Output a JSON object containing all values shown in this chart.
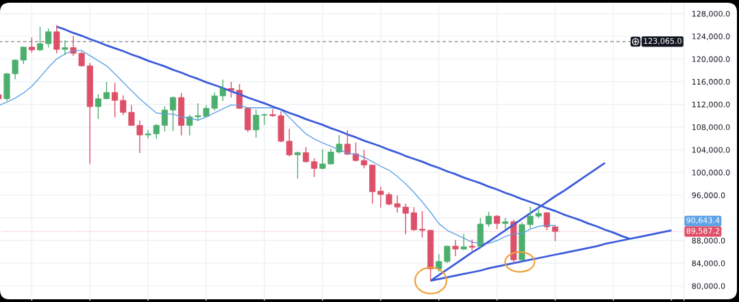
{
  "chart_data": {
    "type": "candlestick",
    "categories": [
      null,
      null,
      null,
      null,
      null,
      null,
      null,
      null,
      null,
      null,
      null,
      null,
      null,
      null,
      null,
      null,
      null,
      null,
      null,
      null,
      null,
      null,
      null,
      null,
      null,
      null,
      null,
      null,
      null,
      null,
      null,
      null,
      null,
      null,
      null,
      null,
      null,
      null,
      null,
      null,
      null,
      null,
      null,
      null,
      null,
      null,
      null,
      null,
      null,
      null,
      null,
      null,
      null,
      null,
      null,
      null,
      null,
      null,
      null,
      null,
      null,
      null,
      null,
      null,
      null,
      null,
      null,
      null,
      null,
      null,
      null,
      null,
      null,
      null,
      null,
      null,
      null,
      null,
      null,
      null,
      null,
      null,
      null
    ],
    "ohlc": [
      [
        113700,
        113800,
        112900,
        113000
      ],
      [
        113000,
        117500,
        112700,
        117400
      ],
      [
        117400,
        119800,
        116500,
        119800
      ],
      [
        119800,
        122100,
        119200,
        122100
      ],
      [
        122100,
        123700,
        121200,
        121600
      ],
      [
        121600,
        125600,
        121500,
        122700
      ],
      [
        122700,
        125300,
        122100,
        124800
      ],
      [
        124800,
        125900,
        121100,
        121700
      ],
      [
        121700,
        123200,
        120800,
        122000
      ],
      [
        122000,
        124000,
        120600,
        121000
      ],
      [
        121000,
        121200,
        118700,
        118800
      ],
      [
        118800,
        119200,
        101600,
        111600
      ],
      [
        111600,
        113700,
        109500,
        113000
      ],
      [
        113000,
        115900,
        113000,
        114100
      ],
      [
        114100,
        115700,
        109800,
        112700
      ],
      [
        112700,
        113500,
        110200,
        110600
      ],
      [
        110600,
        111800,
        108300,
        108300
      ],
      [
        108300,
        109100,
        103500,
        106600
      ],
      [
        106600,
        107400,
        106100,
        106800
      ],
      [
        106800,
        108500,
        106000,
        108300
      ],
      [
        108300,
        111600,
        107300,
        111000
      ],
      [
        111000,
        113300,
        107400,
        113200
      ],
      [
        113200,
        113900,
        106600,
        108300
      ],
      [
        108300,
        110100,
        106600,
        109800
      ],
      [
        109800,
        112100,
        109200,
        110000
      ],
      [
        109900,
        111800,
        109800,
        111300
      ],
      [
        111300,
        114000,
        111000,
        113500
      ],
      [
        113500,
        116300,
        112700,
        114800
      ],
      [
        114800,
        115900,
        113300,
        114500
      ],
      [
        114500,
        115500,
        111300,
        111300
      ],
      [
        111300,
        111400,
        107200,
        107500
      ],
      [
        107500,
        111000,
        106200,
        110100
      ],
      [
        110100,
        110300,
        108500,
        110200
      ],
      [
        110200,
        111100,
        109900,
        110000
      ],
      [
        110000,
        110700,
        105400,
        105500
      ],
      [
        105500,
        107600,
        102900,
        103100
      ],
      [
        103100,
        103600,
        99000,
        103500
      ],
      [
        103500,
        104400,
        101800,
        101900
      ],
      [
        101900,
        102400,
        99300,
        100700
      ],
      [
        100700,
        104000,
        100600,
        101500
      ],
      [
        101500,
        104100,
        101500,
        103600
      ],
      [
        103600,
        106500,
        103400,
        105000
      ],
      [
        105000,
        107400,
        103200,
        103200
      ],
      [
        103300,
        105200,
        102000,
        102100
      ],
      [
        102100,
        103900,
        100800,
        101300
      ],
      [
        101300,
        101300,
        94600,
        96600
      ],
      [
        96700,
        97400,
        93900,
        96100
      ],
      [
        96100,
        96400,
        94300,
        94400
      ],
      [
        94500,
        95900,
        93000,
        93900
      ],
      [
        93900,
        94400,
        89200,
        92800
      ],
      [
        92900,
        93800,
        89800,
        89900
      ],
      [
        90000,
        93100,
        88600,
        89800
      ],
      [
        89800,
        89800,
        80900,
        83000
      ],
      [
        83000,
        85500,
        82600,
        84300
      ],
      [
        84300,
        87000,
        84100,
        87000
      ],
      [
        87000,
        88000,
        85300,
        86500
      ],
      [
        86500,
        89100,
        86400,
        86900
      ],
      [
        87000,
        88100,
        86300,
        86800
      ],
      [
        87000,
        91900,
        86800,
        90900
      ],
      [
        90900,
        93000,
        90500,
        92300
      ],
      [
        92300,
        92400,
        90100,
        91000
      ],
      [
        91000,
        91900,
        90100,
        91300
      ],
      [
        91300,
        91600,
        84000,
        84600
      ],
      [
        84600,
        91100,
        84400,
        90800
      ],
      [
        90800,
        93900,
        90200,
        92300
      ],
      [
        92300,
        93400,
        92000,
        92800
      ],
      [
        92900,
        92900,
        89900,
        90400
      ],
      [
        90400,
        90600,
        88000,
        89587.2
      ],
      null,
      null,
      null,
      null,
      null,
      null,
      null,
      null,
      null,
      null,
      null,
      null,
      null,
      null,
      null
    ],
    "colors": [
      "#dd5069",
      "#4caf6e",
      "#4caf6e",
      "#4caf6e",
      "#dd5069",
      "#4caf6e",
      "#4caf6e",
      "#dd5069",
      "#4caf6e",
      "#dd5069",
      "#dd5069",
      "#dd5069",
      "#4caf6e",
      "#4caf6e",
      "#dd5069",
      "#dd5069",
      "#dd5069",
      "#dd5069",
      "#4caf6e",
      "#4caf6e",
      "#4caf6e",
      "#4caf6e",
      "#dd5069",
      "#4caf6e",
      "#4caf6e",
      "#4caf6e",
      "#4caf6e",
      "#4caf6e",
      "#dd5069",
      "#dd5069",
      "#dd5069",
      "#4caf6e",
      "#4caf6e",
      "#dd5069",
      "#dd5069",
      "#dd5069",
      "#4caf6e",
      "#dd5069",
      "#dd5069",
      "#4caf6e",
      "#4caf6e",
      "#4caf6e",
      "#dd5069",
      "#dd5069",
      "#dd5069",
      "#dd5069",
      "#dd5069",
      "#dd5069",
      "#dd5069",
      "#dd5069",
      "#dd5069",
      "#dd5069",
      "#dd5069",
      "#4caf6e",
      "#4caf6e",
      "#dd5069",
      "#4caf6e",
      "#dd5069",
      "#4caf6e",
      "#4caf6e",
      "#dd5069",
      "#4caf6e",
      "#dd5069",
      "#4caf6e",
      "#4caf6e",
      "#4caf6e",
      "#dd5069",
      "#dd5069",
      null,
      null,
      null,
      null,
      null,
      null,
      null,
      null,
      null,
      null,
      null,
      null,
      null,
      null,
      null
    ],
    "series": [
      {
        "type": "line",
        "color": "#5ea2e6",
        "values": [
          111800,
          112400,
          113100,
          114000,
          115200,
          116800,
          118500,
          120000,
          120900,
          121500,
          121500,
          120600,
          119700,
          118800,
          117400,
          115900,
          114400,
          113000,
          111700,
          110500,
          110300,
          110300,
          109800,
          109600,
          109200,
          109800,
          110500,
          111200,
          111900,
          111800,
          111400,
          111400,
          111400,
          111400,
          111100,
          109700,
          108200,
          106800,
          105900,
          105200,
          104600,
          104000,
          103400,
          103200,
          102700,
          101900,
          101100,
          100400,
          99300,
          98000,
          96500,
          94800,
          93000,
          91000,
          89800,
          89100,
          88400,
          87700,
          87500,
          87500,
          88000,
          88700,
          89200,
          89200,
          90000,
          90500,
          90700,
          90643.4,
          null,
          null,
          null,
          null,
          null,
          null,
          null,
          null,
          null,
          null,
          null,
          null,
          null,
          null,
          null
        ]
      },
      {
        "type": "line",
        "color": "#3b5bdb",
        "values": [
          null,
          null,
          null,
          null,
          null,
          null,
          null,
          125700,
          125200,
          124600,
          124100,
          123500,
          123000,
          122400,
          121900,
          121400,
          120800,
          120300,
          119700,
          119200,
          118700,
          118100,
          117600,
          117000,
          116500,
          115900,
          115400,
          114900,
          114300,
          113800,
          113200,
          112700,
          112200,
          111600,
          111100,
          110500,
          110000,
          109400,
          108900,
          108400,
          107800,
          107300,
          106700,
          106200,
          105600,
          105100,
          104600,
          104000,
          103500,
          102900,
          102400,
          101900,
          101300,
          100800,
          100200,
          99700,
          99100,
          98600,
          98100,
          97500,
          97000,
          96400,
          95900,
          95300,
          94800,
          94300,
          93700,
          93200,
          92600,
          92100,
          91600,
          91000,
          90500,
          89900,
          89400,
          88800,
          88300,
          null,
          null,
          null,
          null,
          null,
          null
        ]
      },
      {
        "type": "line",
        "color": "#3b5bdb",
        "values": [
          null,
          null,
          null,
          null,
          null,
          null,
          null,
          null,
          null,
          null,
          null,
          null,
          null,
          null,
          null,
          null,
          null,
          null,
          null,
          null,
          null,
          null,
          null,
          null,
          null,
          null,
          null,
          null,
          null,
          null,
          null,
          null,
          null,
          null,
          null,
          null,
          null,
          null,
          null,
          null,
          null,
          null,
          null,
          null,
          null,
          null,
          null,
          null,
          null,
          null,
          null,
          null,
          80900,
          81900,
          82900,
          83900,
          84900,
          85900,
          86800,
          87800,
          88800,
          89800,
          90800,
          91800,
          92800,
          93800,
          94800,
          95800,
          96700,
          97700,
          98700,
          99700,
          100700,
          101700,
          null,
          null,
          null,
          null,
          null,
          null,
          null,
          null,
          null
        ]
      },
      {
        "type": "line",
        "color": "#3b5bdb",
        "values": [
          null,
          null,
          null,
          null,
          null,
          null,
          null,
          null,
          null,
          null,
          null,
          null,
          null,
          null,
          null,
          null,
          null,
          null,
          null,
          null,
          null,
          null,
          null,
          null,
          null,
          null,
          null,
          null,
          null,
          null,
          null,
          null,
          null,
          null,
          null,
          null,
          null,
          null,
          null,
          null,
          null,
          null,
          null,
          null,
          null,
          null,
          null,
          null,
          null,
          null,
          null,
          null,
          80900,
          81200,
          81500,
          81800,
          82100,
          82400,
          82700,
          83100,
          83400,
          83700,
          84000,
          84300,
          84600,
          84900,
          85200,
          85500,
          85800,
          86100,
          86400,
          86700,
          87000,
          87400,
          87700,
          88000,
          88300,
          88600,
          88900,
          89200,
          89500,
          89800,
          null
        ]
      }
    ],
    "ylim": [
      77400,
      129800
    ],
    "yticks": [
      {
        "value": 80000,
        "label": "80,000.0"
      },
      {
        "value": 84000,
        "label": "84,000.0"
      },
      {
        "value": 88000,
        "label": "88,000.0"
      },
      {
        "value": 92000,
        "label": null
      },
      {
        "value": 96000,
        "label": "96,000.0"
      },
      {
        "value": 100000,
        "label": "100,000.0"
      },
      {
        "value": 104000,
        "label": "104,000.0"
      },
      {
        "value": 108000,
        "label": "108,000.0"
      },
      {
        "value": 112000,
        "label": "112,000.0"
      },
      {
        "value": 116000,
        "label": "116,000.0"
      },
      {
        "value": 120000,
        "label": "120,000.0"
      },
      {
        "value": 124000,
        "label": "124,000.0"
      },
      {
        "value": 128000,
        "label": "128,000.0"
      }
    ],
    "grid": true,
    "ref_lines": [
      {
        "axis": "y",
        "value": 123065.0,
        "label": "123,065.0",
        "color": "#131722",
        "line_style": "dashed"
      },
      {
        "axis": "y",
        "value": 89587.2,
        "label": "89,587.2",
        "color": "#e0506a",
        "line_style": "dotted"
      }
    ],
    "annotations": [
      "90,643.4"
    ]
  }
}
